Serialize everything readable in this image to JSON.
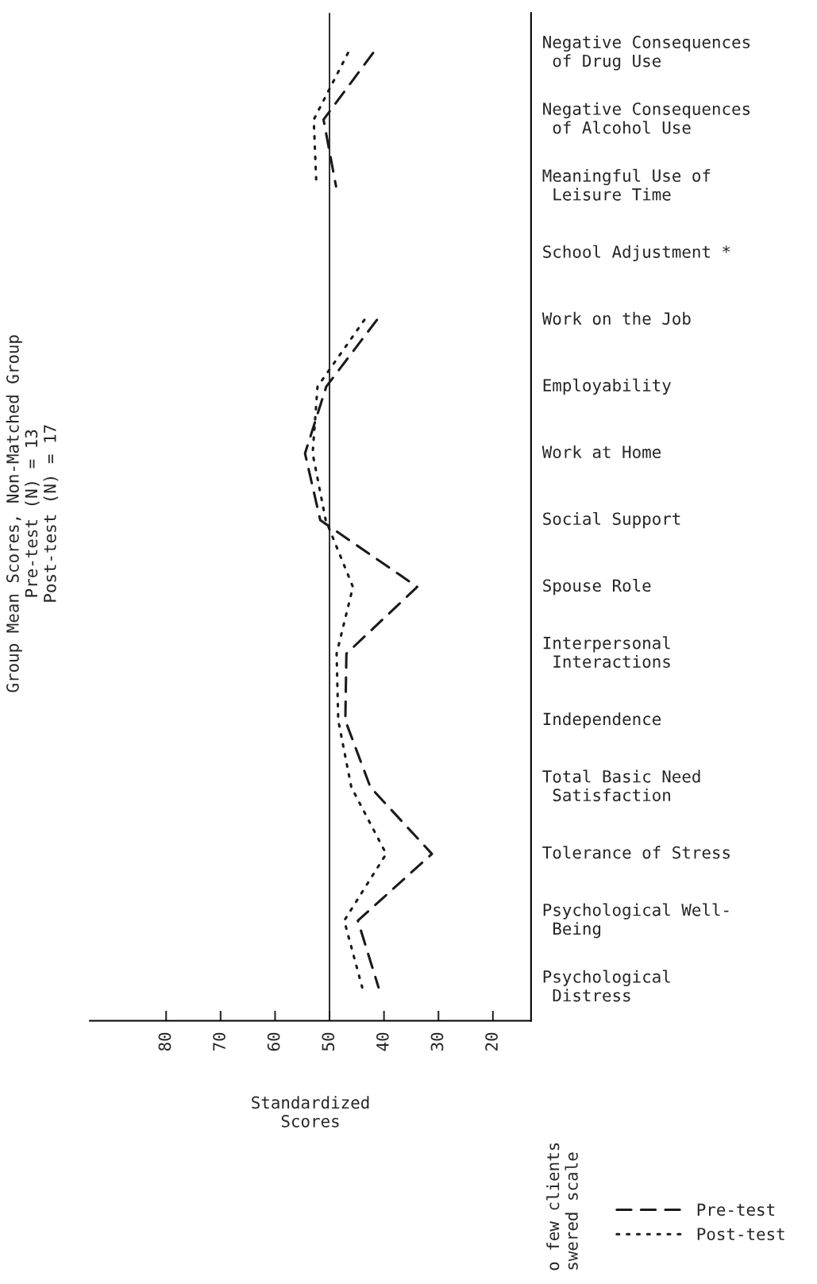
{
  "chart_data": {
    "type": "line",
    "title": "Group Mean Scores, Non-Matched Group\nPre-test (N) = 13\nPost-test (N) = 17",
    "xlabel": "Standardized\nScores",
    "orientation": "horizontal",
    "categories": [
      "Negative Consequences\n of Drug Use",
      "Negative Consequences\n of Alcohol Use",
      "Meaningful Use of\n Leisure Time",
      "School Adjustment *",
      "Work on the Job",
      "Employability",
      "Work at Home",
      "Social Support",
      "Spouse Role",
      "Interpersonal\n Interactions",
      "Independence",
      "Total Basic Need\n Satisfaction",
      "Tolerance of Stress",
      "Psychological Well-\n Being",
      "Psychological\n Distress"
    ],
    "series": [
      {
        "name": "Pre-test",
        "color": "#1a1a1a",
        "line_style": "dashed",
        "values": [
          42.0,
          51.1,
          48.8,
          null,
          41.3,
          50.6,
          54.5,
          51.7,
          33.9,
          46.9,
          47.1,
          42.5,
          31.2,
          44.8,
          41.0
        ]
      },
      {
        "name": "Post-test",
        "color": "#1a1a1a",
        "line_style": "dotted",
        "values": [
          46.6,
          52.9,
          52.4,
          null,
          43.6,
          52.2,
          53.1,
          50.7,
          45.7,
          48.7,
          48.4,
          46.0,
          39.6,
          47.3,
          44.0
        ]
      }
    ],
    "xlim": [
      94,
      13
    ],
    "xticks": [
      80,
      70,
      60,
      50,
      40,
      30,
      20
    ],
    "ref_lines": [
      {
        "axis": "x",
        "value": 50,
        "color": "#1a1a1a",
        "line_style": "solid"
      }
    ],
    "annotations": [
      "o few clients\nswered scale"
    ],
    "grid": false,
    "legend": "bottom right",
    "marker": "none"
  }
}
